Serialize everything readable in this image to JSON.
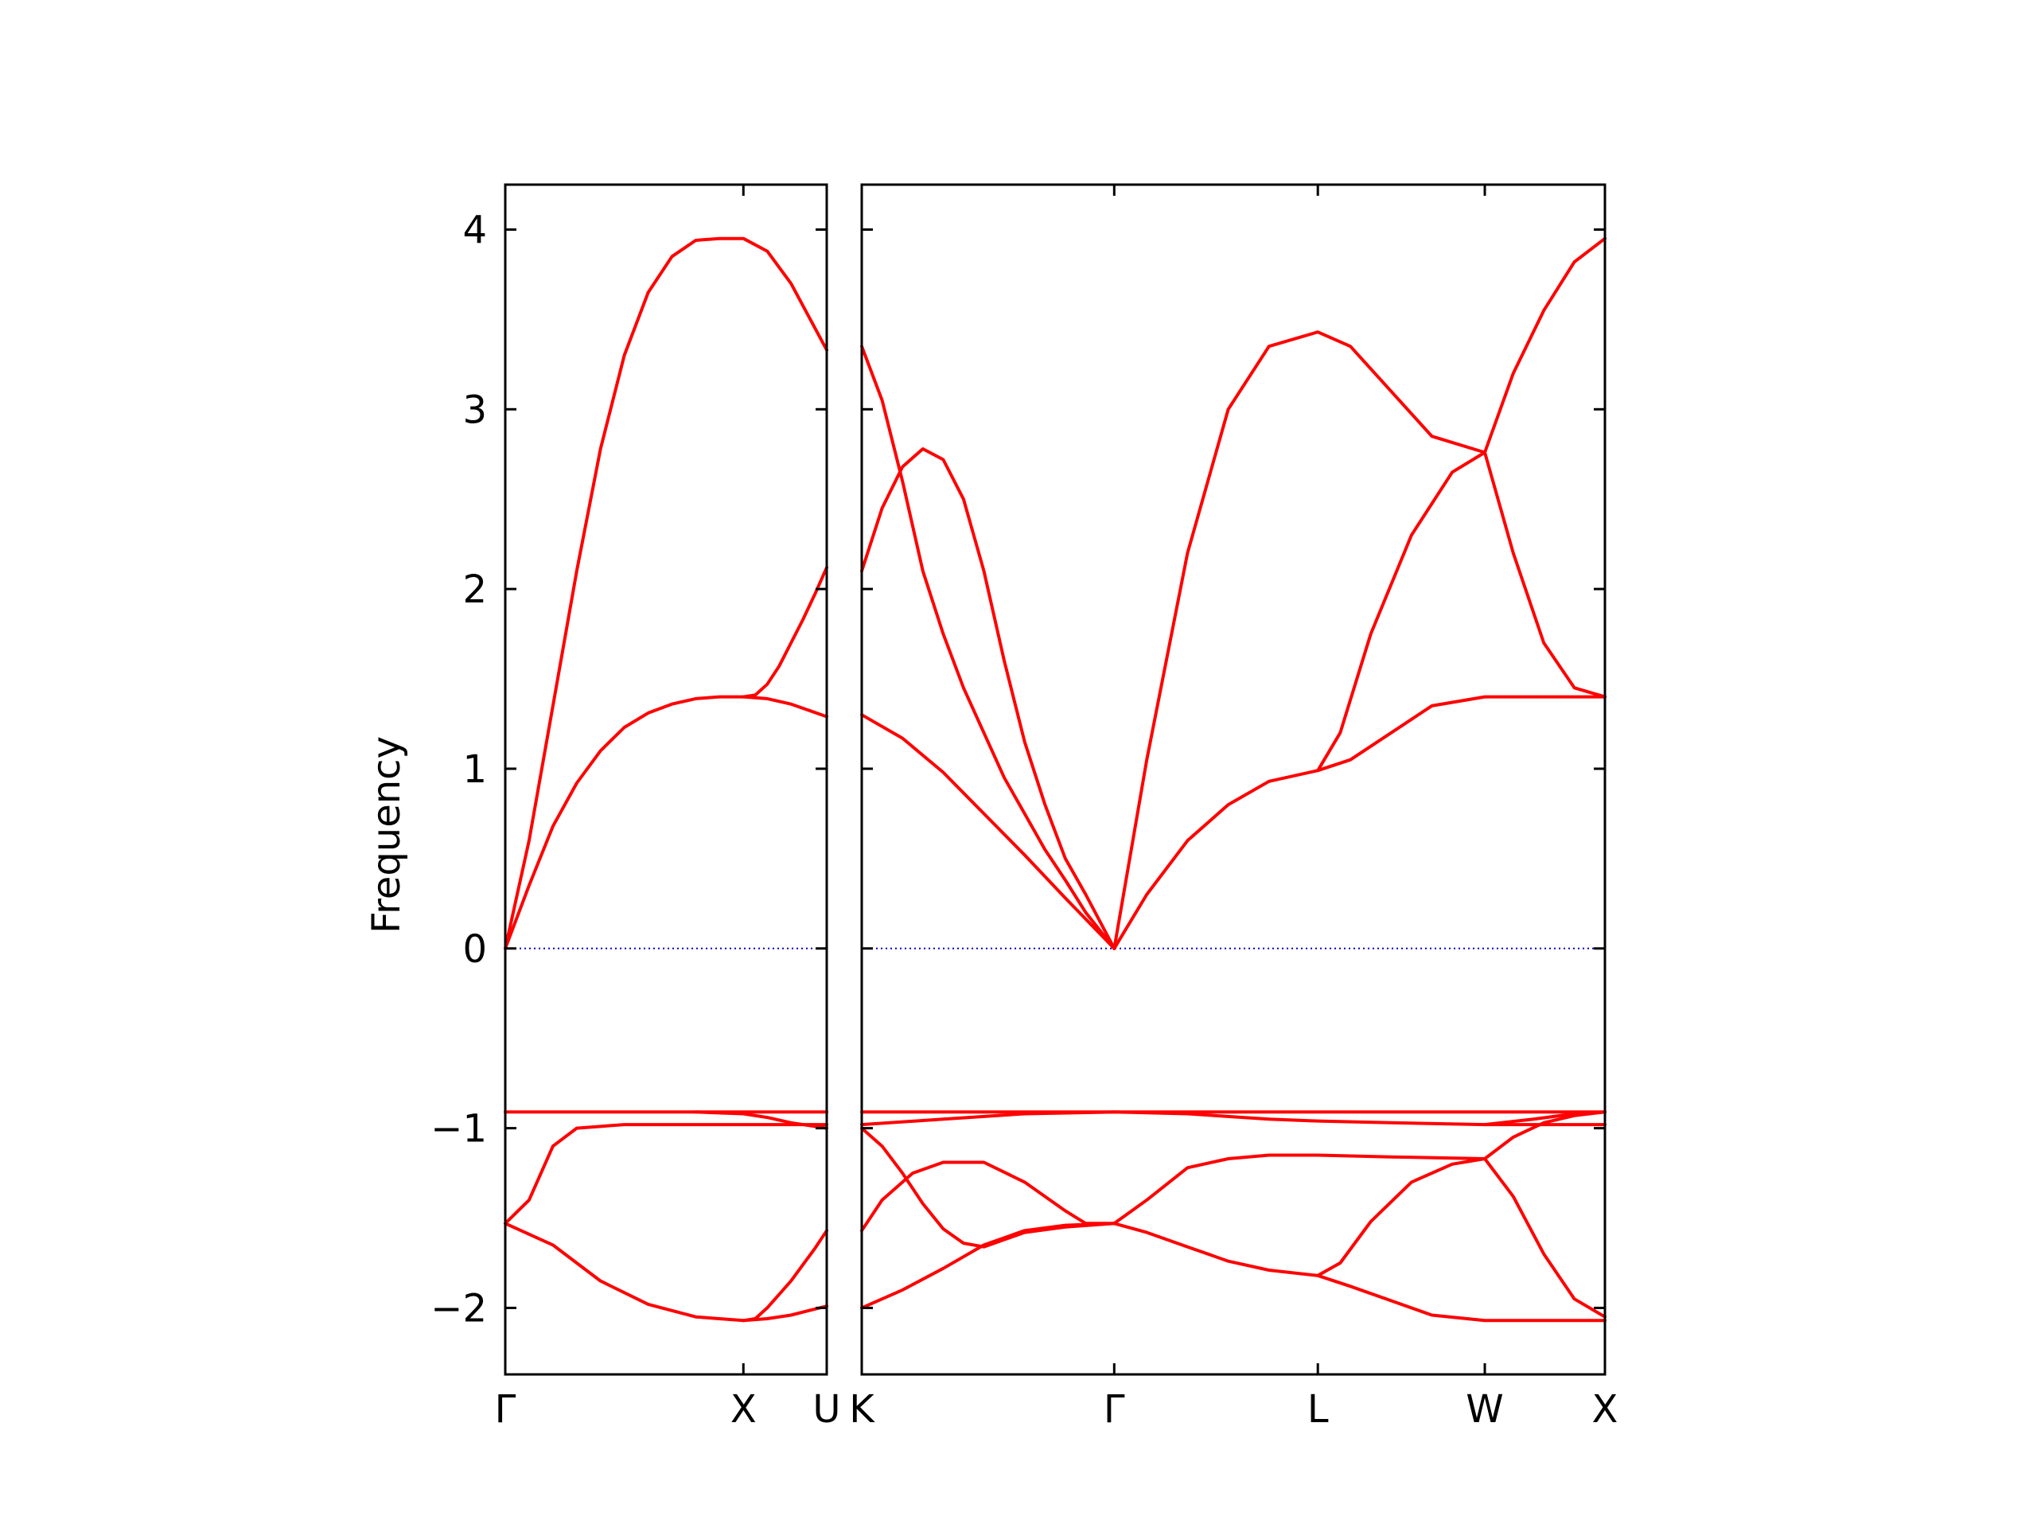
{
  "chart_data": {
    "type": "line",
    "ylabel": "Frequency",
    "ylim": [
      -2.37,
      4.25
    ],
    "yticks": [
      {
        "value": 4,
        "label": "4"
      },
      {
        "value": 3,
        "label": "3"
      },
      {
        "value": 2,
        "label": "2"
      },
      {
        "value": 1,
        "label": "1"
      },
      {
        "value": 0,
        "label": "0"
      },
      {
        "value": -1,
        "label": "−1"
      },
      {
        "value": -2,
        "label": "−2"
      }
    ],
    "grid": false,
    "line_color": "#ff0000",
    "zero_line_color": "#0000cc",
    "panels": [
      {
        "xlim": [
          0,
          1.35
        ],
        "xticks": [
          {
            "value": 0,
            "label": "Γ"
          },
          {
            "value": 1,
            "label": "X"
          },
          {
            "value": 1.35,
            "label": "U"
          }
        ],
        "series": [
          {
            "points": [
              [
                0,
                0
              ],
              [
                0.1,
                0.6
              ],
              [
                0.2,
                1.35
              ],
              [
                0.3,
                2.1
              ],
              [
                0.4,
                2.78
              ],
              [
                0.5,
                3.3
              ],
              [
                0.6,
                3.65
              ],
              [
                0.7,
                3.85
              ],
              [
                0.8,
                3.94
              ],
              [
                0.9,
                3.95
              ],
              [
                1.0,
                3.95
              ],
              [
                1.1,
                3.88
              ],
              [
                1.2,
                3.7
              ],
              [
                1.35,
                3.33
              ]
            ]
          },
          {
            "points": [
              [
                0,
                0
              ],
              [
                0.1,
                0.35
              ],
              [
                0.2,
                0.68
              ],
              [
                0.3,
                0.92
              ],
              [
                0.4,
                1.1
              ],
              [
                0.5,
                1.23
              ],
              [
                0.6,
                1.31
              ],
              [
                0.7,
                1.36
              ],
              [
                0.8,
                1.39
              ],
              [
                0.9,
                1.4
              ],
              [
                1.0,
                1.4
              ],
              [
                1.1,
                1.39
              ],
              [
                1.2,
                1.36
              ],
              [
                1.35,
                1.29
              ]
            ]
          },
          {
            "points": [
              [
                1.0,
                1.4
              ],
              [
                1.05,
                1.41
              ],
              [
                1.1,
                1.47
              ],
              [
                1.15,
                1.57
              ],
              [
                1.2,
                1.7
              ],
              [
                1.25,
                1.83
              ],
              [
                1.3,
                1.97
              ],
              [
                1.35,
                2.12
              ]
            ]
          },
          {
            "points": [
              [
                0,
                -0.91
              ],
              [
                1.35,
                -0.91
              ]
            ]
          },
          {
            "points": [
              [
                0,
                -1.53
              ],
              [
                0.1,
                -1.4
              ],
              [
                0.2,
                -1.1
              ],
              [
                0.3,
                -1.0
              ],
              [
                0.5,
                -0.98
              ],
              [
                0.8,
                -0.98
              ],
              [
                1.0,
                -0.98
              ],
              [
                1.35,
                -0.98
              ]
            ]
          },
          {
            "points": [
              [
                0.8,
                -0.91
              ],
              [
                1.0,
                -0.92
              ],
              [
                1.1,
                -0.94
              ],
              [
                1.2,
                -0.97
              ],
              [
                1.35,
                -1.0
              ]
            ]
          },
          {
            "points": [
              [
                0,
                -1.53
              ],
              [
                0.2,
                -1.65
              ],
              [
                0.4,
                -1.85
              ],
              [
                0.6,
                -1.98
              ],
              [
                0.8,
                -2.05
              ],
              [
                1.0,
                -2.07
              ],
              [
                1.1,
                -2.06
              ],
              [
                1.2,
                -2.04
              ],
              [
                1.35,
                -1.99
              ]
            ]
          },
          {
            "points": [
              [
                1.0,
                -2.07
              ],
              [
                1.05,
                -2.06
              ],
              [
                1.1,
                -2.0
              ],
              [
                1.2,
                -1.85
              ],
              [
                1.3,
                -1.67
              ],
              [
                1.35,
                -1.57
              ]
            ]
          }
        ]
      },
      {
        "xlim": [
          0,
          3.65
        ],
        "xticks": [
          {
            "value": 0,
            "label": "K"
          },
          {
            "value": 1.24,
            "label": "Γ"
          },
          {
            "value": 2.24,
            "label": "L"
          },
          {
            "value": 3.06,
            "label": "W"
          },
          {
            "value": 3.65,
            "label": "X"
          }
        ],
        "series": [
          {
            "points": [
              [
                0,
                2.1
              ],
              [
                0.1,
                2.45
              ],
              [
                0.2,
                2.68
              ],
              [
                0.3,
                2.78
              ],
              [
                0.4,
                2.72
              ],
              [
                0.5,
                2.5
              ],
              [
                0.6,
                2.1
              ],
              [
                0.7,
                1.6
              ],
              [
                0.8,
                1.15
              ],
              [
                0.9,
                0.8
              ],
              [
                1.0,
                0.5
              ],
              [
                1.1,
                0.3
              ],
              [
                1.24,
                0
              ]
            ]
          },
          {
            "points": [
              [
                0,
                3.35
              ],
              [
                0.1,
                3.05
              ],
              [
                0.2,
                2.6
              ],
              [
                0.3,
                2.1
              ],
              [
                0.4,
                1.75
              ],
              [
                0.5,
                1.45
              ],
              [
                0.6,
                1.2
              ],
              [
                0.7,
                0.95
              ],
              [
                0.8,
                0.75
              ],
              [
                0.9,
                0.55
              ],
              [
                1.0,
                0.38
              ],
              [
                1.1,
                0.2
              ],
              [
                1.24,
                0
              ]
            ]
          },
          {
            "points": [
              [
                0,
                1.3
              ],
              [
                0.2,
                1.17
              ],
              [
                0.4,
                0.98
              ],
              [
                0.6,
                0.75
              ],
              [
                0.8,
                0.52
              ],
              [
                1.0,
                0.28
              ],
              [
                1.24,
                0
              ]
            ]
          },
          {
            "points": [
              [
                1.24,
                0
              ],
              [
                1.4,
                0.3
              ],
              [
                1.6,
                0.6
              ],
              [
                1.8,
                0.8
              ],
              [
                2.0,
                0.93
              ],
              [
                2.24,
                0.99
              ],
              [
                2.4,
                1.05
              ],
              [
                2.6,
                1.2
              ],
              [
                2.8,
                1.35
              ],
              [
                3.06,
                1.4
              ],
              [
                3.65,
                1.4
              ]
            ]
          },
          {
            "points": [
              [
                1.24,
                0
              ],
              [
                1.4,
                1.05
              ],
              [
                1.6,
                2.2
              ],
              [
                1.8,
                3.0
              ],
              [
                2.0,
                3.35
              ],
              [
                2.24,
                3.43
              ],
              [
                2.4,
                3.35
              ],
              [
                2.6,
                3.1
              ],
              [
                2.8,
                2.85
              ],
              [
                3.06,
                2.76
              ]
            ]
          },
          {
            "points": [
              [
                2.24,
                0.99
              ],
              [
                2.35,
                1.2
              ],
              [
                2.5,
                1.75
              ],
              [
                2.7,
                2.3
              ],
              [
                2.9,
                2.65
              ],
              [
                3.06,
                2.76
              ]
            ]
          },
          {
            "points": [
              [
                3.06,
                2.76
              ],
              [
                3.2,
                3.2
              ],
              [
                3.35,
                3.55
              ],
              [
                3.5,
                3.82
              ],
              [
                3.65,
                3.95
              ]
            ]
          },
          {
            "points": [
              [
                3.06,
                2.76
              ],
              [
                3.2,
                2.2
              ],
              [
                3.35,
                1.7
              ],
              [
                3.5,
                1.45
              ],
              [
                3.65,
                1.4
              ]
            ]
          },
          {
            "points": [
              [
                0,
                -0.91
              ],
              [
                3.65,
                -0.91
              ]
            ]
          },
          {
            "points": [
              [
                0,
                -0.98
              ],
              [
                0.4,
                -0.95
              ],
              [
                0.8,
                -0.92
              ],
              [
                1.24,
                -0.91
              ],
              [
                1.6,
                -0.92
              ],
              [
                2.0,
                -0.95
              ],
              [
                2.24,
                -0.96
              ],
              [
                2.6,
                -0.97
              ],
              [
                3.06,
                -0.98
              ],
              [
                3.65,
                -0.98
              ]
            ]
          },
          {
            "points": [
              [
                3.06,
                -0.98
              ],
              [
                3.3,
                -0.95
              ],
              [
                3.5,
                -0.92
              ],
              [
                3.65,
                -0.91
              ]
            ]
          },
          {
            "points": [
              [
                0,
                -1.0
              ],
              [
                0.1,
                -1.1
              ],
              [
                0.2,
                -1.25
              ],
              [
                0.3,
                -1.42
              ],
              [
                0.4,
                -1.56
              ],
              [
                0.5,
                -1.64
              ],
              [
                0.6,
                -1.66
              ],
              [
                0.7,
                -1.62
              ],
              [
                0.8,
                -1.58
              ],
              [
                1.0,
                -1.55
              ],
              [
                1.24,
                -1.53
              ]
            ]
          },
          {
            "points": [
              [
                0,
                -1.57
              ],
              [
                0.1,
                -1.4
              ],
              [
                0.25,
                -1.25
              ],
              [
                0.4,
                -1.19
              ],
              [
                0.6,
                -1.19
              ],
              [
                0.8,
                -1.3
              ],
              [
                1.0,
                -1.46
              ],
              [
                1.1,
                -1.53
              ],
              [
                1.24,
                -1.53
              ]
            ]
          },
          {
            "points": [
              [
                0,
                -2.0
              ],
              [
                0.2,
                -1.9
              ],
              [
                0.4,
                -1.78
              ],
              [
                0.6,
                -1.65
              ],
              [
                0.8,
                -1.57
              ],
              [
                1.0,
                -1.54
              ],
              [
                1.24,
                -1.53
              ]
            ]
          },
          {
            "points": [
              [
                1.24,
                -1.53
              ],
              [
                1.4,
                -1.4
              ],
              [
                1.6,
                -1.22
              ],
              [
                1.8,
                -1.17
              ],
              [
                2.0,
                -1.15
              ],
              [
                2.24,
                -1.15
              ],
              [
                2.6,
                -1.16
              ],
              [
                3.06,
                -1.17
              ]
            ]
          },
          {
            "points": [
              [
                1.24,
                -1.53
              ],
              [
                1.4,
                -1.58
              ],
              [
                1.6,
                -1.66
              ],
              [
                1.8,
                -1.74
              ],
              [
                2.0,
                -1.79
              ],
              [
                2.24,
                -1.82
              ],
              [
                2.4,
                -1.88
              ],
              [
                2.6,
                -1.96
              ],
              [
                2.8,
                -2.04
              ],
              [
                3.06,
                -2.07
              ],
              [
                3.65,
                -2.07
              ]
            ]
          },
          {
            "points": [
              [
                2.24,
                -1.82
              ],
              [
                2.35,
                -1.75
              ],
              [
                2.5,
                -1.52
              ],
              [
                2.7,
                -1.3
              ],
              [
                2.9,
                -1.2
              ],
              [
                3.06,
                -1.17
              ]
            ]
          },
          {
            "points": [
              [
                3.06,
                -1.17
              ],
              [
                3.2,
                -1.38
              ],
              [
                3.35,
                -1.7
              ],
              [
                3.5,
                -1.95
              ],
              [
                3.65,
                -2.05
              ]
            ]
          },
          {
            "points": [
              [
                3.06,
                -1.17
              ],
              [
                3.2,
                -1.05
              ],
              [
                3.35,
                -0.97
              ],
              [
                3.5,
                -0.93
              ],
              [
                3.65,
                -0.91
              ]
            ]
          }
        ]
      }
    ]
  }
}
